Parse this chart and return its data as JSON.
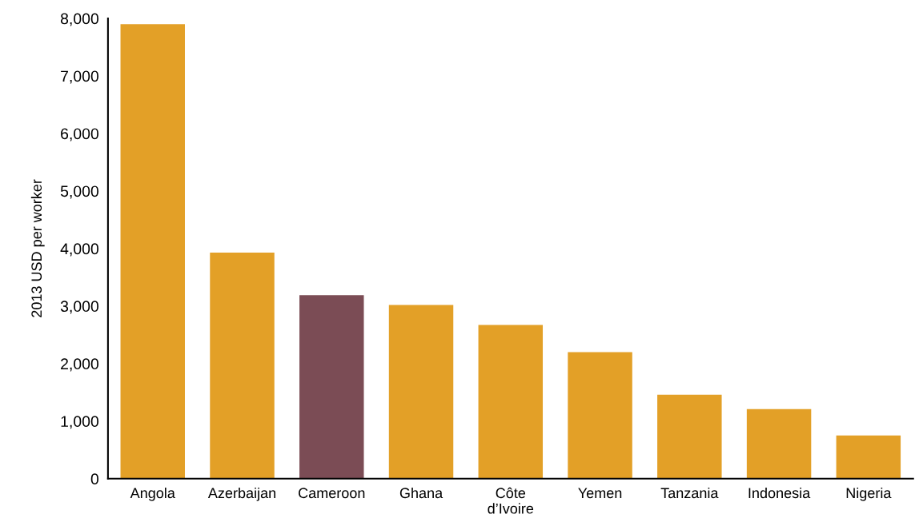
{
  "chart_data": {
    "type": "bar",
    "ylabel": "2013 USD per worker",
    "categories": [
      "Angola",
      "Azerbaijan",
      "Cameroon",
      "Ghana",
      "Côte\nd’Ivoire",
      "Yemen",
      "Tanzania",
      "Indonesia",
      "Nigeria"
    ],
    "values": [
      7900,
      3930,
      3190,
      3020,
      2670,
      2200,
      1460,
      1210,
      750
    ],
    "colors": [
      "#e3a027",
      "#e3a027",
      "#7b4c55",
      "#e3a027",
      "#e3a027",
      "#e3a027",
      "#e3a027",
      "#e3a027",
      "#e3a027"
    ],
    "ylim": [
      0,
      8000
    ],
    "yticks": [
      {
        "value": 0,
        "label": "0"
      },
      {
        "value": 1000,
        "label": "1,000"
      },
      {
        "value": 2000,
        "label": "2,000"
      },
      {
        "value": 3000,
        "label": "3,000"
      },
      {
        "value": 4000,
        "label": "4,000"
      },
      {
        "value": 5000,
        "label": "5,000"
      },
      {
        "value": 6000,
        "label": "6,000"
      },
      {
        "value": 7000,
        "label": "7,000"
      },
      {
        "value": 8000,
        "label": "8,000"
      }
    ],
    "grid": false,
    "legend": false
  }
}
